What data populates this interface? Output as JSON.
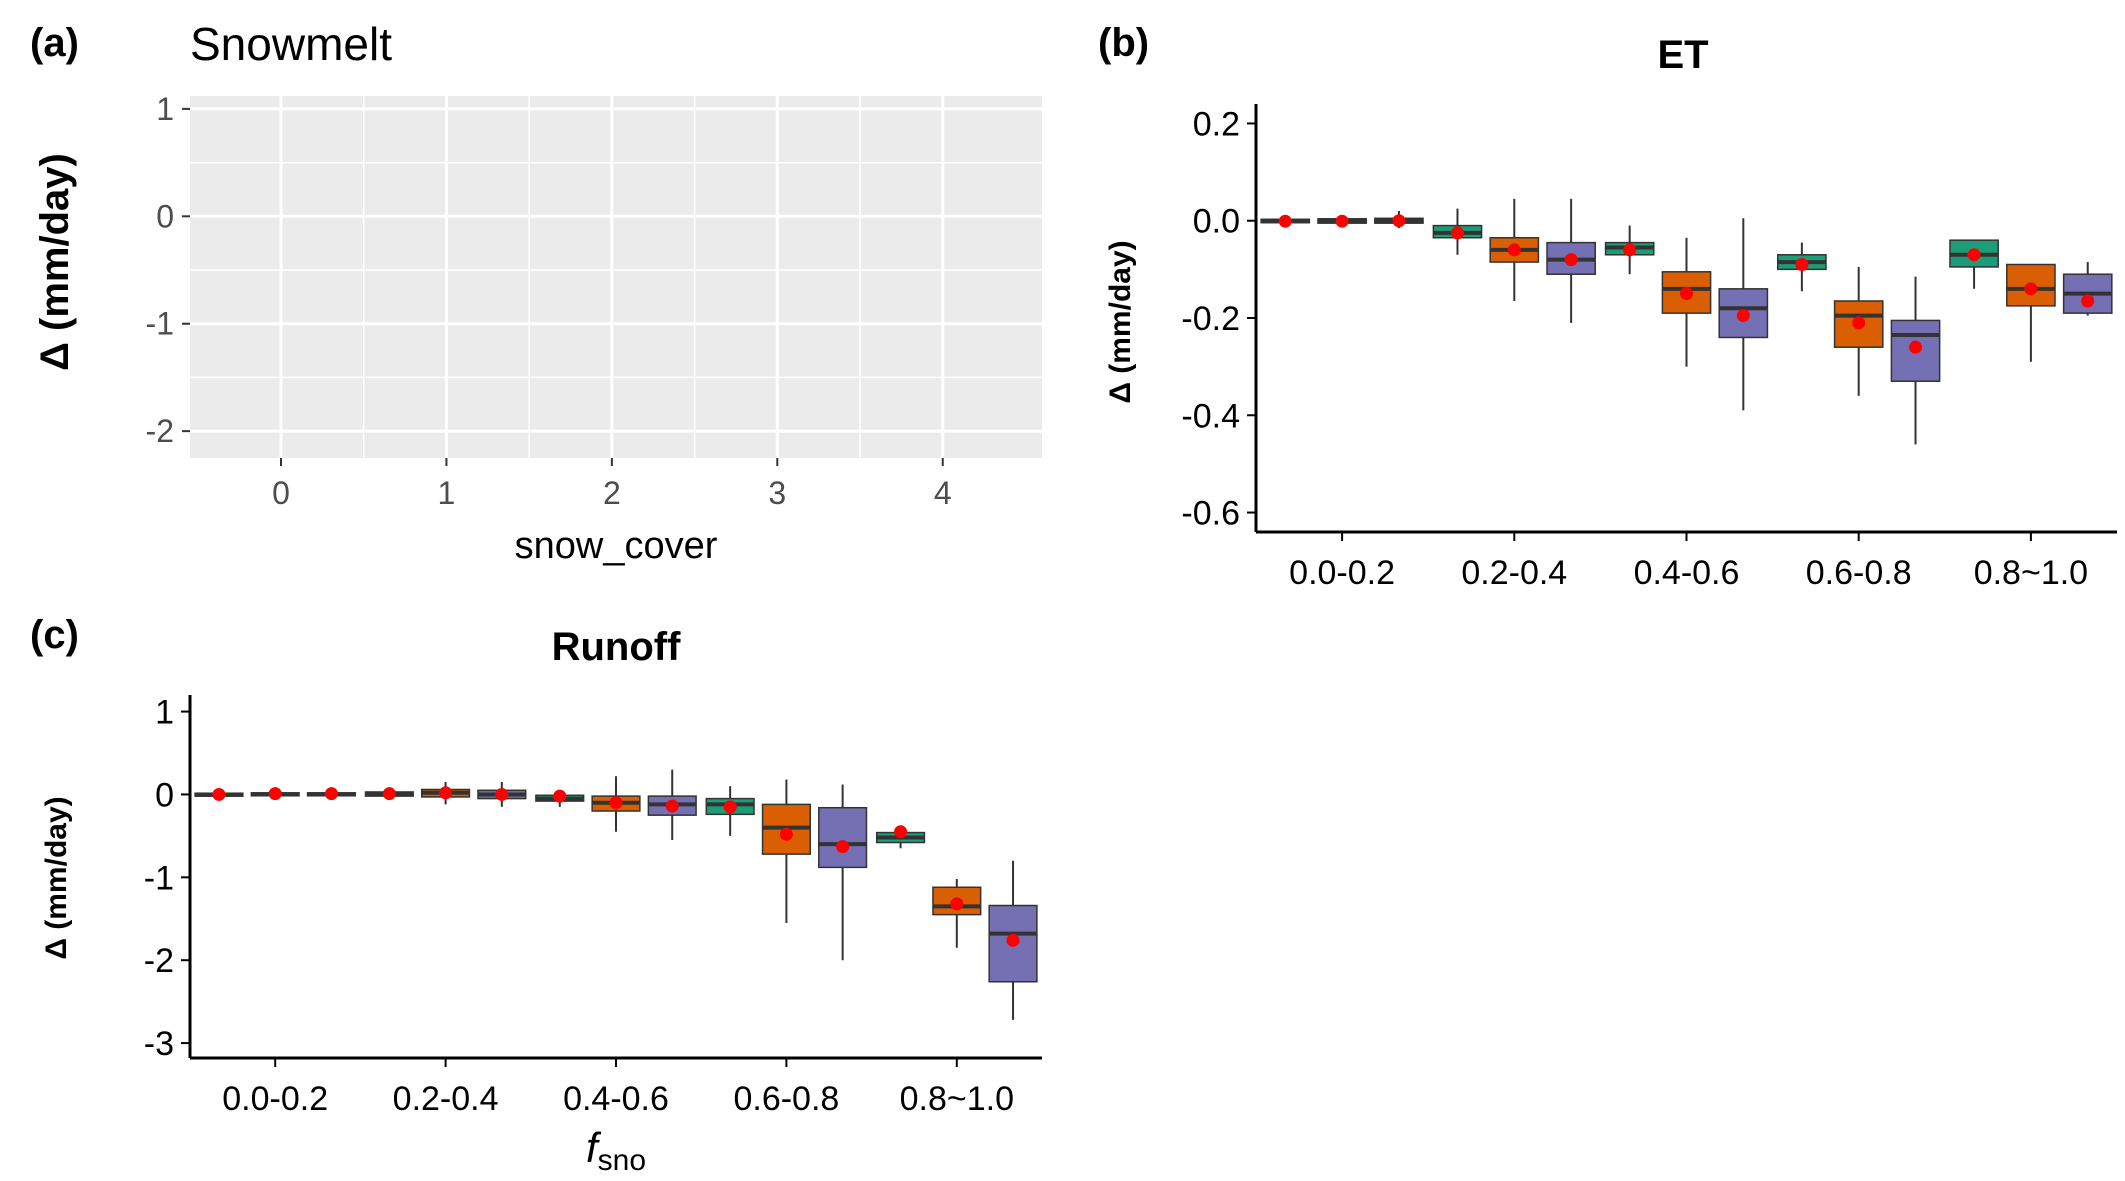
{
  "colors": {
    "panel_bg": "#ebebeb",
    "grid": "#ffffff",
    "axis": "#000000",
    "box_fills": [
      "#1b9e77",
      "#d95f02",
      "#7570b3"
    ],
    "mean_point": "#ff0000",
    "median_line": "#333333"
  },
  "chart_data": [
    {
      "panel_label": "(a)",
      "type": "scatter",
      "title": "Snowmelt",
      "xlabel": "snow_cover",
      "ylabel": "Δ (mm/day)",
      "xlim": [
        -0.55,
        4.6
      ],
      "ylim": [
        -2.25,
        1.12
      ],
      "xticks": [
        0,
        1,
        2,
        3,
        4
      ],
      "xtick_labels": [
        "0",
        "1",
        "2",
        "3",
        "4"
      ],
      "yticks": [
        1,
        0,
        -1,
        -2
      ],
      "ytick_labels": [
        "1",
        "0",
        "-1",
        "-2"
      ],
      "grid": true,
      "series": []
    },
    {
      "panel_label": "(b)",
      "type": "box",
      "title": "ET",
      "xlabel": "",
      "ylabel": "Δ (mm/day)",
      "ylim": [
        -0.64,
        0.24
      ],
      "yticks": [
        0.2,
        0.0,
        -0.2,
        -0.4,
        -0.6
      ],
      "ytick_labels": [
        "0.2",
        "0.0",
        "-0.2",
        "-0.4",
        "-0.6"
      ],
      "categories": [
        "0.0-0.2",
        "0.2-0.4",
        "0.4-0.6",
        "0.6-0.8",
        "0.8~1.0"
      ],
      "grid": false,
      "series": [
        {
          "boxes": [
            {
              "low": -0.008,
              "q1": -0.004,
              "median": -0.001,
              "q3": 0.003,
              "high": 0.008,
              "mean": -0.001
            },
            {
              "low": -0.07,
              "q1": -0.035,
              "median": -0.025,
              "q3": -0.01,
              "high": 0.025,
              "mean": -0.025
            },
            {
              "low": -0.11,
              "q1": -0.07,
              "median": -0.055,
              "q3": -0.045,
              "high": -0.01,
              "mean": -0.06
            },
            {
              "low": -0.145,
              "q1": -0.1,
              "median": -0.085,
              "q3": -0.07,
              "high": -0.045,
              "mean": -0.09
            },
            {
              "low": -0.14,
              "q1": -0.095,
              "median": -0.07,
              "q3": -0.04,
              "high": -0.04,
              "mean": -0.07
            }
          ]
        },
        {
          "boxes": [
            {
              "low": -0.01,
              "q1": -0.005,
              "median": -0.001,
              "q3": 0.004,
              "high": 0.01,
              "mean": -0.001
            },
            {
              "low": -0.165,
              "q1": -0.085,
              "median": -0.06,
              "q3": -0.035,
              "high": 0.045,
              "mean": -0.06
            },
            {
              "low": -0.3,
              "q1": -0.19,
              "median": -0.14,
              "q3": -0.105,
              "high": -0.035,
              "mean": -0.15
            },
            {
              "low": -0.36,
              "q1": -0.26,
              "median": -0.195,
              "q3": -0.165,
              "high": -0.095,
              "mean": -0.21
            },
            {
              "low": -0.29,
              "q1": -0.175,
              "median": -0.14,
              "q3": -0.09,
              "high": -0.09,
              "mean": -0.14
            }
          ]
        },
        {
          "boxes": [
            {
              "low": -0.015,
              "q1": -0.005,
              "median": 0.0,
              "q3": 0.005,
              "high": 0.02,
              "mean": 0.0
            },
            {
              "low": -0.21,
              "q1": -0.11,
              "median": -0.08,
              "q3": -0.045,
              "high": 0.045,
              "mean": -0.08
            },
            {
              "low": -0.39,
              "q1": -0.24,
              "median": -0.18,
              "q3": -0.14,
              "high": 0.005,
              "mean": -0.195
            },
            {
              "low": -0.46,
              "q1": -0.33,
              "median": -0.235,
              "q3": -0.205,
              "high": -0.115,
              "mean": -0.26
            },
            {
              "low": -0.195,
              "q1": -0.19,
              "median": -0.15,
              "q3": -0.11,
              "high": -0.085,
              "mean": -0.165
            }
          ]
        }
      ]
    },
    {
      "panel_label": "(c)",
      "type": "box",
      "title": "Runoff",
      "xlabel": "f",
      "xlabel_sub": "sno",
      "ylabel": "Δ (mm/day)",
      "ylim": [
        -3.18,
        1.2
      ],
      "yticks": [
        1,
        0,
        -1,
        -2,
        -3
      ],
      "ytick_labels": [
        "1",
        "0",
        "-1",
        "-2",
        "-3"
      ],
      "categories": [
        "0.0-0.2",
        "0.2-0.4",
        "0.4-0.6",
        "0.6-0.8",
        "0.8~1.0"
      ],
      "grid": false,
      "series": [
        {
          "boxes": [
            {
              "low": -0.03,
              "q1": -0.015,
              "median": 0.0,
              "q3": 0.015,
              "high": 0.03,
              "mean": 0.0
            },
            {
              "low": -0.05,
              "q1": -0.02,
              "median": 0.0,
              "q3": 0.03,
              "high": 0.06,
              "mean": 0.01
            },
            {
              "low": -0.15,
              "q1": -0.08,
              "median": -0.05,
              "q3": -0.01,
              "high": 0.05,
              "mean": -0.02
            },
            {
              "low": -0.5,
              "q1": -0.24,
              "median": -0.12,
              "q3": -0.05,
              "high": 0.1,
              "mean": -0.15
            },
            {
              "low": -0.65,
              "q1": -0.58,
              "median": -0.52,
              "q3": -0.46,
              "high": -0.45,
              "mean": -0.45
            }
          ]
        },
        {
          "boxes": [
            {
              "low": -0.02,
              "q1": -0.01,
              "median": 0.0,
              "q3": 0.02,
              "high": 0.03,
              "mean": 0.01
            },
            {
              "low": -0.12,
              "q1": -0.03,
              "median": 0.02,
              "q3": 0.06,
              "high": 0.15,
              "mean": 0.02
            },
            {
              "low": -0.45,
              "q1": -0.2,
              "median": -0.1,
              "q3": -0.02,
              "high": 0.22,
              "mean": -0.1
            },
            {
              "low": -1.55,
              "q1": -0.72,
              "median": -0.4,
              "q3": -0.12,
              "high": 0.18,
              "mean": -0.48
            },
            {
              "low": -1.85,
              "q1": -1.45,
              "median": -1.35,
              "q3": -1.12,
              "high": -1.02,
              "mean": -1.32
            }
          ]
        },
        {
          "boxes": [
            {
              "low": -0.02,
              "q1": -0.01,
              "median": 0.0,
              "q3": 0.02,
              "high": 0.03,
              "mean": 0.01
            },
            {
              "low": -0.15,
              "q1": -0.05,
              "median": 0.0,
              "q3": 0.05,
              "high": 0.15,
              "mean": 0.0
            },
            {
              "low": -0.55,
              "q1": -0.25,
              "median": -0.12,
              "q3": -0.02,
              "high": 0.3,
              "mean": -0.14
            },
            {
              "low": -2.0,
              "q1": -0.88,
              "median": -0.6,
              "q3": -0.16,
              "high": 0.12,
              "mean": -0.63
            },
            {
              "low": -2.72,
              "q1": -2.26,
              "median": -1.68,
              "q3": -1.34,
              "high": -0.8,
              "mean": -1.76
            }
          ]
        }
      ]
    }
  ]
}
